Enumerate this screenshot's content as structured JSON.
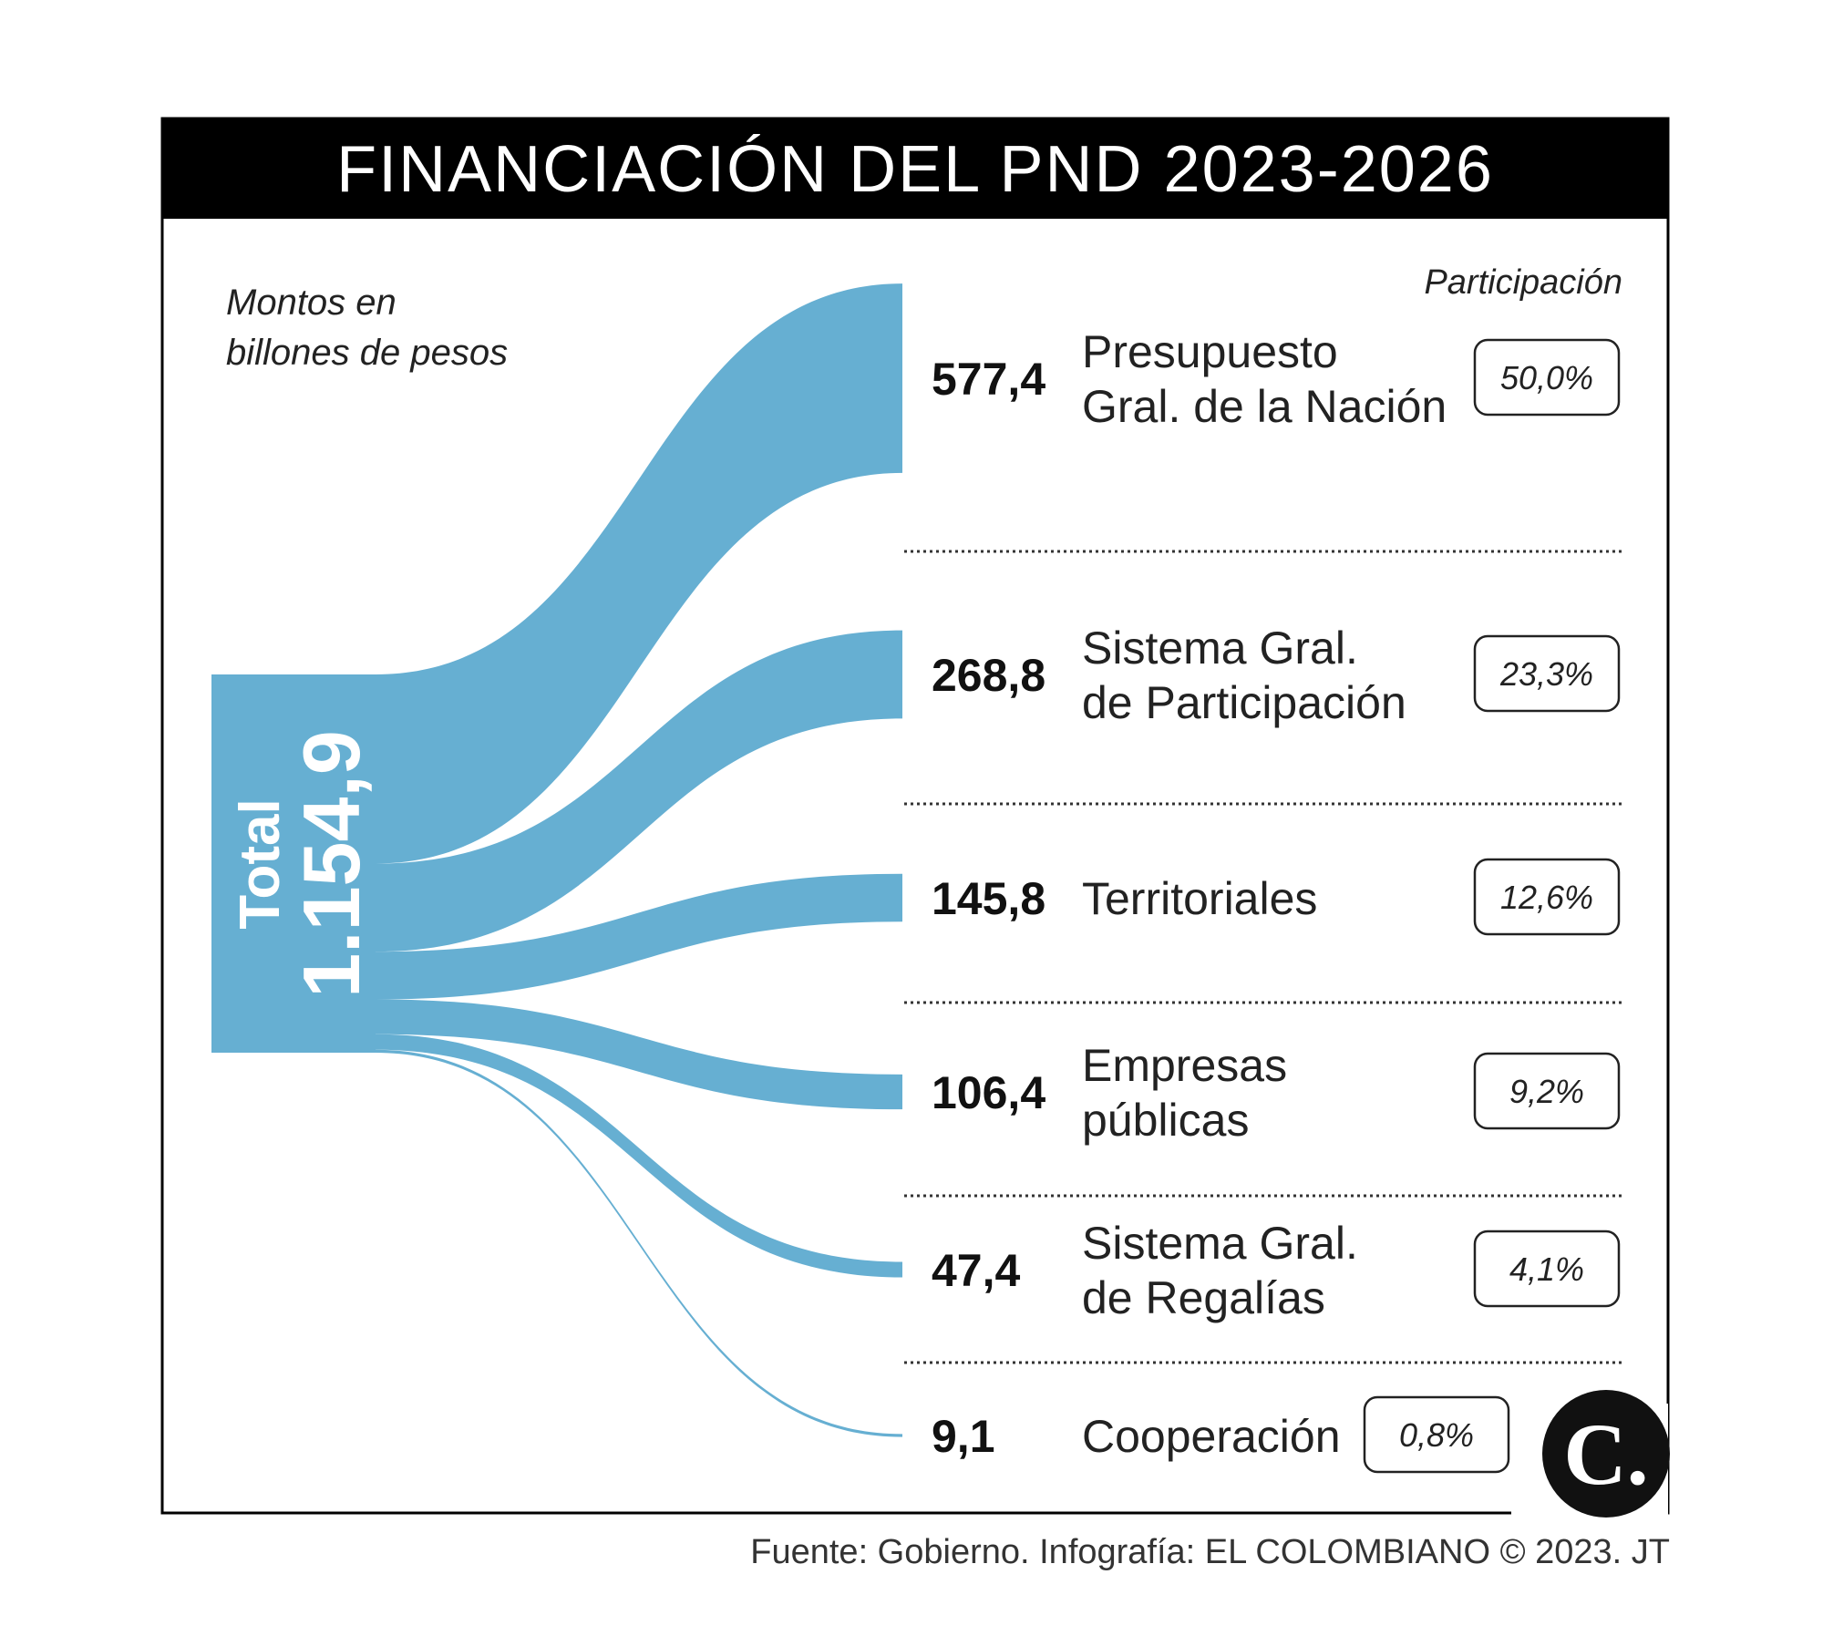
{
  "header": {
    "title": "FINANCIACIÓN DEL PND 2023-2026"
  },
  "unit_note": [
    "Montos en",
    "billones de pesos"
  ],
  "participation_heading": "Participación",
  "source": "Fuente: Gobierno. Infografía: EL COLOMBIANO © 2023. JT",
  "logo": {
    "glyph": "C.",
    "icon": "el-colombiano-logo-icon"
  },
  "colors": {
    "flow": "#66afd2",
    "title_bg": "#000000",
    "text": "#222222"
  },
  "chart_data": {
    "type": "sankey",
    "total": {
      "label": "Total",
      "value": "1.154,9",
      "numeric": 1154.9
    },
    "categories": [
      "Presupuesto Gral. de la Nación",
      "Sistema Gral. de Participación",
      "Territoriales",
      "Empresas públicas",
      "Sistema Gral. de Regalías",
      "Cooperación"
    ],
    "nodes": [
      {
        "value": 577.4,
        "value_label": "577,4",
        "label_lines": [
          "Presupuesto",
          "Gral. de la Nación"
        ],
        "share": "50,0%"
      },
      {
        "value": 268.8,
        "value_label": "268,8",
        "label_lines": [
          "Sistema Gral.",
          "de Participación"
        ],
        "share": "23,3%"
      },
      {
        "value": 145.8,
        "value_label": "145,8",
        "label_lines": [
          "Territoriales"
        ],
        "share": "12,6%"
      },
      {
        "value": 106.4,
        "value_label": "106,4",
        "label_lines": [
          "Empresas",
          "públicas"
        ],
        "share": "9,2%"
      },
      {
        "value": 47.4,
        "value_label": "47,4",
        "label_lines": [
          "Sistema Gral.",
          "de Regalías"
        ],
        "share": "4,1%"
      },
      {
        "value": 9.1,
        "value_label": "9,1",
        "label_lines": [
          "Cooperación"
        ],
        "share": "0,8%"
      }
    ]
  }
}
